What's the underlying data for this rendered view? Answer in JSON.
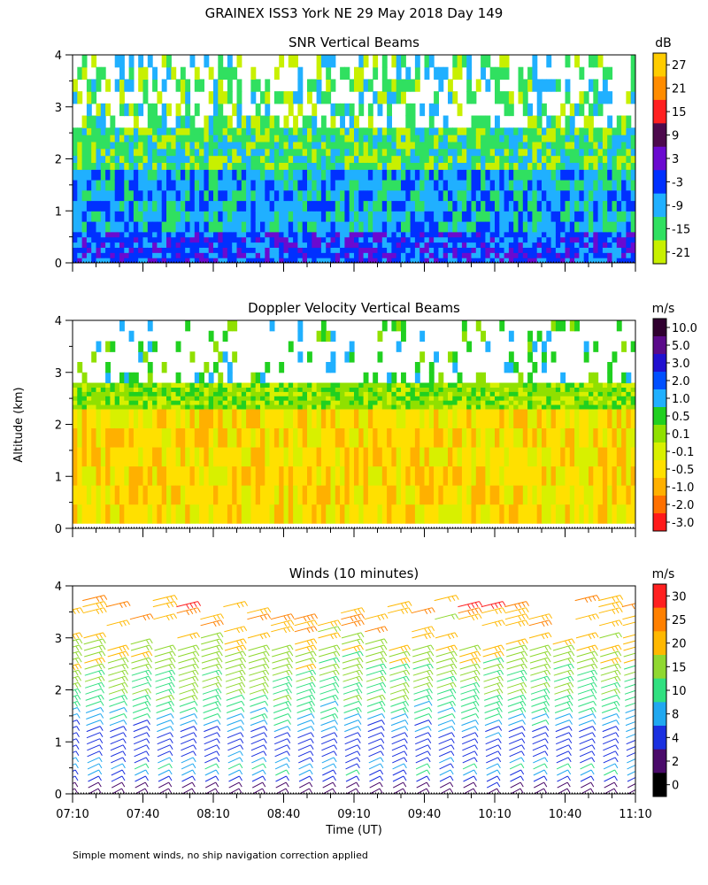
{
  "figure": {
    "title": "GRAINEX ISS3 York NE  29 May 2018 Day 149",
    "y_axis_label": "Altitude (km)",
    "x_axis_label": "Time (UT)",
    "footnote": "Simple moment winds, no ship navigation correction applied"
  },
  "chart_data": [
    {
      "type": "heatmap",
      "title": "SNR Vertical Beams",
      "xlabel": "Time (UT)",
      "ylabel": "Altitude (km)",
      "x_ticks": [
        "07:10",
        "07:40",
        "08:10",
        "08:40",
        "09:10",
        "09:40",
        "10:10",
        "10:40",
        "11:10"
      ],
      "xlim_minutes_utc": [
        430,
        670
      ],
      "y_ticks": [
        "0",
        "1",
        "2",
        "3",
        "4"
      ],
      "ylim": [
        0,
        4
      ],
      "colorbar": {
        "unit": "dB",
        "labels": [
          "27",
          "21",
          "15",
          "9",
          "3",
          "-3",
          "-9",
          "-15",
          "-21"
        ],
        "colors": [
          "#ffcc00",
          "#ff8c00",
          "#ff2020",
          "#4d0a4d",
          "#6a0ad0",
          "#0030ff",
          "#20b0ff",
          "#30e060",
          "#c8f000"
        ]
      },
      "layers": [
        {
          "altitude_km": [
            0.0,
            0.6
          ],
          "snr_db": -6,
          "description": "strong returns"
        },
        {
          "altitude_km": [
            0.6,
            1.8
          ],
          "snr_db": -12
        },
        {
          "altitude_km": [
            1.8,
            2.6
          ],
          "snr_db": -15
        },
        {
          "altitude_km": [
            2.6,
            4.0
          ],
          "snr_db": -18,
          "coverage": "patchy"
        }
      ]
    },
    {
      "type": "heatmap",
      "title": "Doppler Velocity Vertical Beams",
      "xlabel": "Time (UT)",
      "ylabel": "Altitude (km)",
      "x_ticks": [
        "07:10",
        "07:40",
        "08:10",
        "08:40",
        "09:10",
        "09:40",
        "10:10",
        "10:40",
        "11:10"
      ],
      "xlim_minutes_utc": [
        430,
        670
      ],
      "y_ticks": [
        "0",
        "1",
        "2",
        "3",
        "4"
      ],
      "ylim": [
        0,
        4
      ],
      "colorbar": {
        "unit": "m/s",
        "labels": [
          "10.0",
          "5.0",
          "3.0",
          "2.0",
          "1.0",
          "0.5",
          "0.1",
          "-0.1",
          "-0.5",
          "-1.0",
          "-2.0",
          "-3.0"
        ],
        "colors": [
          "#300030",
          "#5a0a8a",
          "#2010d0",
          "#0050ff",
          "#20b0ff",
          "#20d020",
          "#90e000",
          "#d8f000",
          "#ffe000",
          "#ffb000",
          "#ff7000",
          "#ff1a1a"
        ]
      },
      "layers": [
        {
          "altitude_km": [
            0.1,
            2.3
          ],
          "velocity_ms": -0.5,
          "description": "weak downward motion"
        },
        {
          "altitude_km": [
            2.3,
            2.8
          ],
          "velocity_ms": 0.1
        },
        {
          "altitude_km": [
            2.8,
            4.0
          ],
          "velocity_ms": 0.5,
          "coverage": "sparse"
        }
      ]
    },
    {
      "type": "wind-barbs",
      "title": "Winds (10 minutes)",
      "xlabel": "Time (UT)",
      "ylabel": "Altitude (km)",
      "x_ticks": [
        "07:10",
        "07:40",
        "08:10",
        "08:40",
        "09:10",
        "09:40",
        "10:10",
        "10:40",
        "11:10"
      ],
      "xlim_minutes_utc": [
        430,
        670
      ],
      "y_ticks": [
        "0",
        "1",
        "2",
        "3",
        "4"
      ],
      "ylim": [
        0,
        4
      ],
      "colorbar": {
        "unit": "m/s",
        "labels": [
          "30",
          "25",
          "20",
          "15",
          "10",
          "8",
          "4",
          "2",
          "0"
        ],
        "colors": [
          "#ff2020",
          "#ff8000",
          "#ffb800",
          "#90d830",
          "#30e080",
          "#20a8f0",
          "#1a30e0",
          "#4a0a6a",
          "#000000"
        ]
      },
      "profile_speed_ms": [
        {
          "altitude_km": 0.2,
          "speed": 3
        },
        {
          "altitude_km": 0.5,
          "speed": 10
        },
        {
          "altitude_km": 1.0,
          "speed": 5
        },
        {
          "altitude_km": 1.5,
          "speed": 10
        },
        {
          "altitude_km": 2.0,
          "speed": 14
        },
        {
          "altitude_km": 2.5,
          "speed": 17
        },
        {
          "altitude_km": 3.0,
          "speed": 20
        },
        {
          "altitude_km": 3.5,
          "speed": 24
        },
        {
          "altitude_km": 3.8,
          "speed": 28
        }
      ],
      "profile_interval_minutes": 10
    }
  ]
}
